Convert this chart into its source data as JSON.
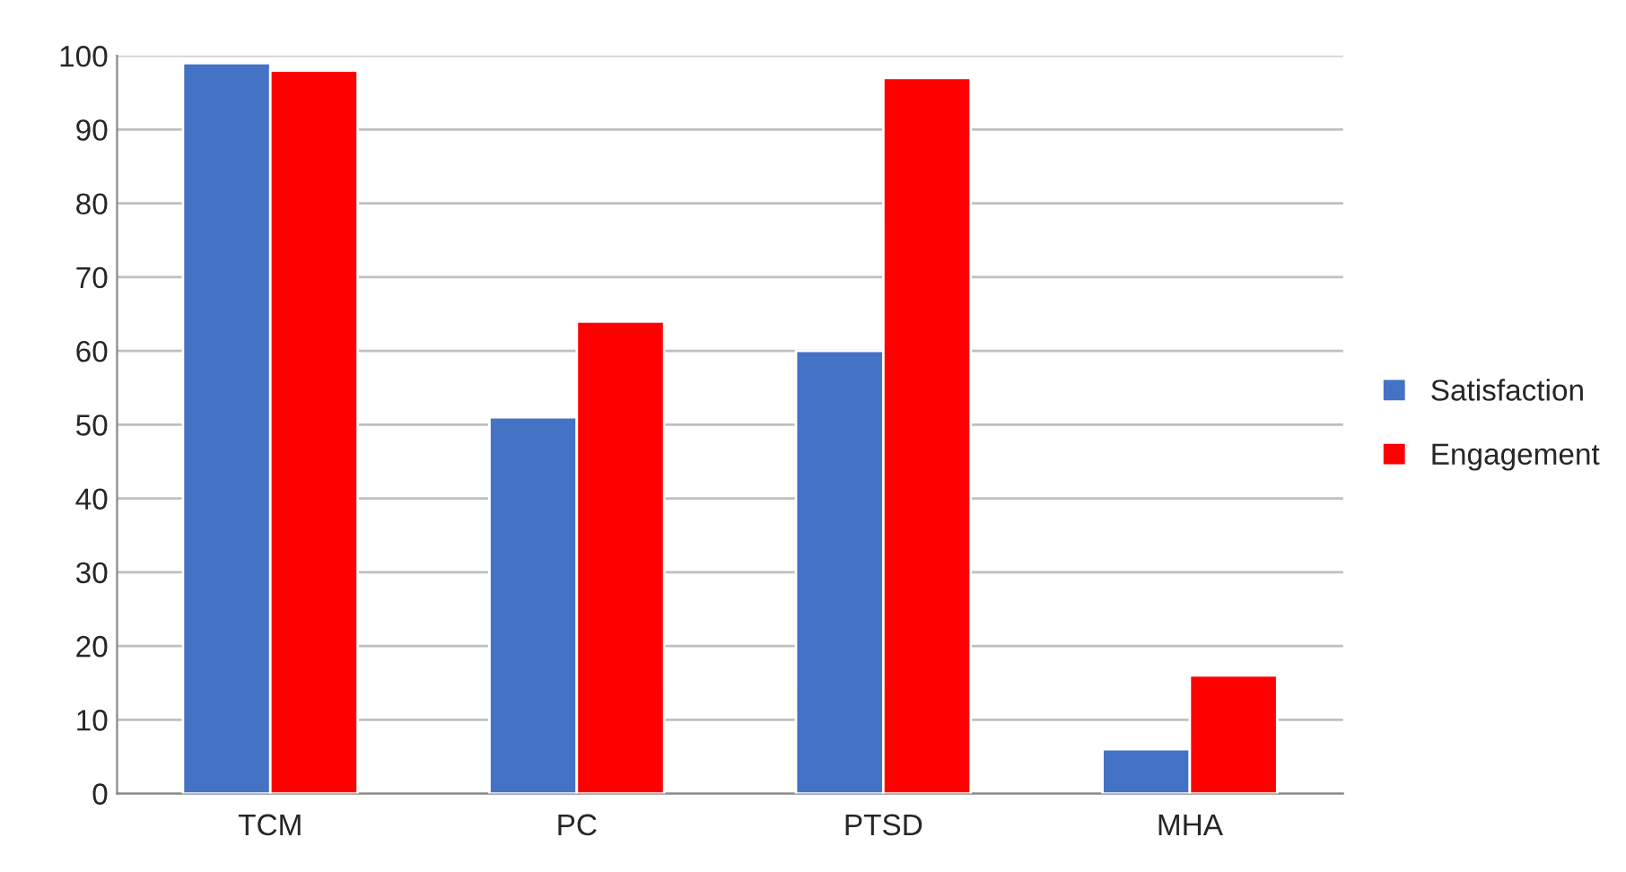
{
  "chart_data": {
    "type": "bar",
    "categories": [
      "TCM",
      "PC",
      "PTSD",
      "MHA"
    ],
    "series": [
      {
        "name": "Satisfaction",
        "color": "#4472c4",
        "values": [
          99,
          51,
          60,
          6
        ]
      },
      {
        "name": "Engagement",
        "color": "#ff0000",
        "values": [
          98,
          64,
          97,
          16
        ]
      }
    ],
    "ylim": [
      0,
      100
    ],
    "yticks": [
      0,
      10,
      20,
      30,
      40,
      50,
      60,
      70,
      80,
      90,
      100
    ],
    "grid": "y",
    "legend": "right"
  }
}
